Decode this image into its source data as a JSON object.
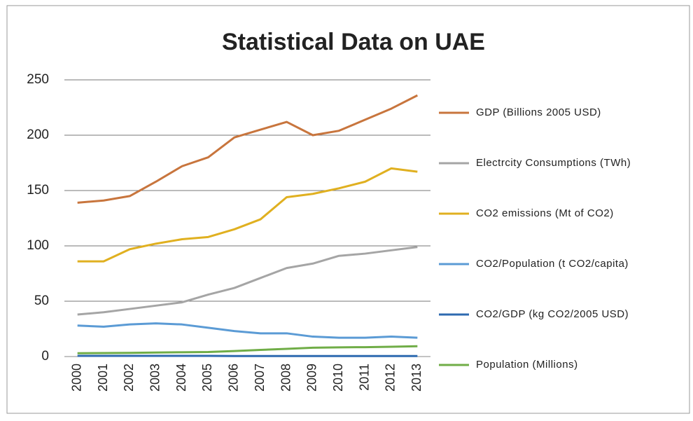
{
  "chart_data": {
    "type": "line",
    "title": "Statistical Data on UAE",
    "categories": [
      "2000",
      "2001",
      "2002",
      "2003",
      "2004",
      "2005",
      "2006",
      "2007",
      "2008",
      "2009",
      "2010",
      "2011",
      "2012",
      "2013"
    ],
    "series": [
      {
        "name": "GDP (Billions 2005 USD)",
        "color": "#c8753d",
        "values": [
          139,
          141,
          145,
          158,
          172,
          180,
          198,
          205,
          212,
          200,
          204,
          214,
          224,
          236
        ]
      },
      {
        "name": "Electrcity Consumptions (TWh)",
        "color": "#a5a5a5",
        "values": [
          38,
          40,
          43,
          46,
          49,
          56,
          62,
          71,
          80,
          84,
          91,
          93,
          96,
          99
        ]
      },
      {
        "name": "CO2 emissions (Mt of CO2)",
        "color": "#e0b020",
        "values": [
          86,
          86,
          97,
          102,
          106,
          108,
          115,
          124,
          144,
          147,
          152,
          158,
          170,
          167
        ]
      },
      {
        "name": "CO2/Population (t CO2/capita)",
        "color": "#5b9bd5",
        "values": [
          28,
          27,
          29,
          30,
          29,
          26,
          23,
          21,
          21,
          18,
          17,
          17,
          18,
          17
        ]
      },
      {
        "name": "CO2/GDP (kg CO2/2005 USD)",
        "color": "#2e6ab0",
        "values": [
          0.6,
          0.6,
          0.6,
          0.6,
          0.6,
          0.6,
          0.5,
          0.5,
          0.5,
          0.5,
          0.5,
          0.5,
          0.5,
          0.5
        ]
      },
      {
        "name": "Population (Millions)",
        "color": "#70ad47",
        "values": [
          3.0,
          3.2,
          3.3,
          3.6,
          3.9,
          4.1,
          5.0,
          6.0,
          7.0,
          8.0,
          8.3,
          8.5,
          8.9,
          9.3
        ]
      }
    ],
    "ylim": [
      0,
      250
    ],
    "yticks": [
      0,
      50,
      100,
      150,
      200,
      250
    ],
    "grid": true,
    "legend": "right"
  }
}
